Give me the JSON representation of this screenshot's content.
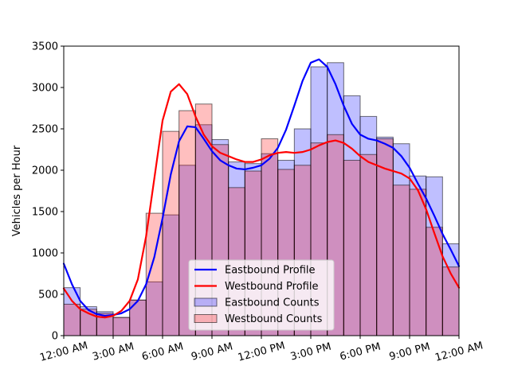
{
  "chart_data": {
    "type": "bar",
    "title": "",
    "xlabel": "",
    "ylabel": "Vehicles per Hour",
    "ylim": [
      0,
      3500
    ],
    "xlim": [
      0,
      24
    ],
    "grid": false,
    "legend_position": "bottom-center",
    "x_ticks": [
      {
        "value": 0,
        "label": "12:00 AM"
      },
      {
        "value": 3,
        "label": "3:00 AM"
      },
      {
        "value": 6,
        "label": "6:00 AM"
      },
      {
        "value": 9,
        "label": "9:00 AM"
      },
      {
        "value": 12,
        "label": "12:00 PM"
      },
      {
        "value": 15,
        "label": "3:00 PM"
      },
      {
        "value": 18,
        "label": "6:00 PM"
      },
      {
        "value": 21,
        "label": "9:00 PM"
      },
      {
        "value": 24,
        "label": "12:00 AM"
      }
    ],
    "y_ticks": [
      0,
      500,
      1000,
      1500,
      2000,
      2500,
      3000,
      3500
    ],
    "hours": [
      0,
      1,
      2,
      3,
      4,
      5,
      6,
      7,
      8,
      9,
      10,
      11,
      12,
      13,
      14,
      15,
      16,
      17,
      18,
      19,
      20,
      21,
      22,
      23
    ],
    "series": [
      {
        "name": "Eastbound Counts",
        "kind": "bar",
        "color": "#0000ff",
        "values": [
          580,
          350,
          290,
          220,
          430,
          650,
          1460,
          2060,
          2550,
          2370,
          2100,
          2080,
          2200,
          2120,
          2500,
          3250,
          3300,
          2900,
          2650,
          2400,
          2320,
          1930,
          1920,
          1110
        ]
      },
      {
        "name": "Westbound Counts",
        "kind": "bar",
        "color": "#ff0000",
        "values": [
          380,
          320,
          270,
          220,
          430,
          1480,
          2470,
          2720,
          2800,
          2310,
          1790,
          1990,
          2380,
          2010,
          2060,
          2330,
          2430,
          2120,
          2190,
          2380,
          1820,
          1770,
          1310,
          830
        ]
      },
      {
        "name": "Eastbound Profile",
        "kind": "line",
        "color": "#0000ff",
        "x": [
          0,
          0.5,
          1,
          1.5,
          2,
          2.5,
          3,
          3.5,
          4,
          4.5,
          5,
          5.5,
          6,
          6.5,
          7,
          7.5,
          8,
          8.5,
          9,
          9.5,
          10,
          10.5,
          11,
          11.5,
          12,
          12.5,
          13,
          13.5,
          14,
          14.5,
          15,
          15.5,
          16,
          16.5,
          17,
          17.5,
          18,
          18.5,
          19,
          19.5,
          20,
          20.5,
          21,
          21.5,
          22,
          22.5,
          23,
          23.5,
          24
        ],
        "values": [
          870,
          620,
          420,
          310,
          260,
          240,
          250,
          270,
          320,
          420,
          620,
          950,
          1420,
          1950,
          2350,
          2530,
          2520,
          2380,
          2230,
          2120,
          2060,
          2020,
          2010,
          2030,
          2060,
          2140,
          2270,
          2490,
          2780,
          3080,
          3300,
          3340,
          3250,
          3040,
          2780,
          2560,
          2430,
          2380,
          2360,
          2320,
          2270,
          2170,
          2030,
          1840,
          1660,
          1450,
          1230,
          1040,
          840
        ]
      },
      {
        "name": "Westbound Profile",
        "kind": "line",
        "color": "#ff0000",
        "x": [
          0,
          0.5,
          1,
          1.5,
          2,
          2.5,
          3,
          3.5,
          4,
          4.5,
          5,
          5.5,
          6,
          6.5,
          7,
          7.5,
          8,
          8.5,
          9,
          9.5,
          10,
          10.5,
          11,
          11.5,
          12,
          12.5,
          13,
          13.5,
          14,
          14.5,
          15,
          15.5,
          16,
          16.5,
          17,
          17.5,
          18,
          18.5,
          19,
          19.5,
          20,
          20.5,
          21,
          21.5,
          22,
          22.5,
          23,
          23.5,
          24
        ],
        "values": [
          570,
          420,
          320,
          270,
          230,
          220,
          240,
          300,
          420,
          680,
          1200,
          1900,
          2600,
          2950,
          3040,
          2920,
          2650,
          2430,
          2290,
          2210,
          2170,
          2130,
          2100,
          2100,
          2130,
          2180,
          2210,
          2220,
          2210,
          2220,
          2250,
          2300,
          2340,
          2360,
          2330,
          2260,
          2170,
          2100,
          2060,
          2020,
          1990,
          1960,
          1900,
          1760,
          1530,
          1240,
          960,
          750,
          580
        ]
      }
    ]
  }
}
